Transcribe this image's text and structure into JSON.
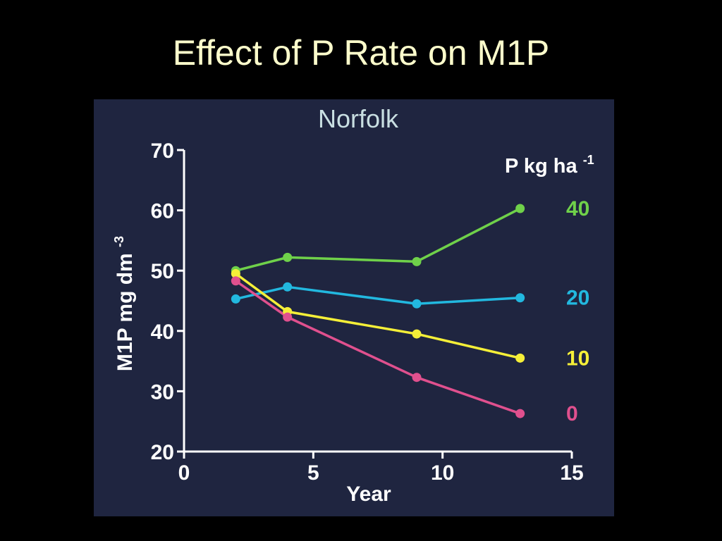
{
  "slide": {
    "title": "Effect of P Rate on M1P"
  },
  "chart_data": {
    "type": "line",
    "title": "Norfolk",
    "xlabel": "Year",
    "ylabel": "M1P mg dm",
    "ylabel_superscript": "-3",
    "legend_title": "P kg ha",
    "legend_title_superscript": "-1",
    "xlim": [
      0,
      15
    ],
    "ylim": [
      20,
      70
    ],
    "xticks": [
      0,
      5,
      10,
      15
    ],
    "yticks": [
      20,
      30,
      40,
      50,
      60,
      70
    ],
    "grid": false,
    "legend_placement": "right",
    "series": [
      {
        "name": "40",
        "color": "#6fd14a",
        "x": [
          2,
          4,
          9,
          13
        ],
        "y": [
          50,
          52.2,
          51.5,
          60.3
        ]
      },
      {
        "name": "20",
        "color": "#22b8df",
        "x": [
          2,
          4,
          9,
          13
        ],
        "y": [
          45.3,
          47.3,
          44.5,
          45.5
        ]
      },
      {
        "name": "10",
        "color": "#f5ef38",
        "x": [
          2,
          4,
          9,
          13
        ],
        "y": [
          49.5,
          43.2,
          39.5,
          35.5
        ]
      },
      {
        "name": "0",
        "color": "#e0508e",
        "x": [
          2,
          4,
          9,
          13
        ],
        "y": [
          48.3,
          42.3,
          32.3,
          26.3
        ]
      }
    ]
  }
}
